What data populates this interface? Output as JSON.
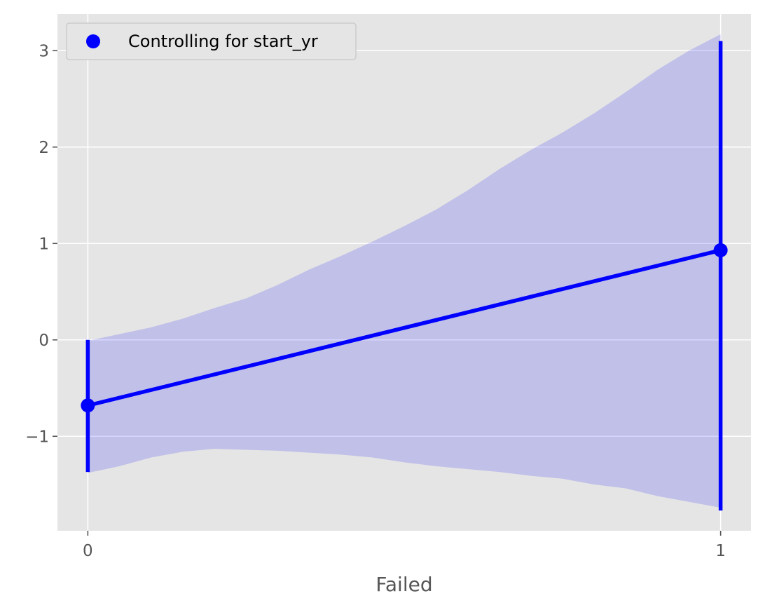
{
  "chart_data": {
    "type": "line",
    "xlabel": "Failed",
    "ylabel": "",
    "x": [
      0,
      1
    ],
    "x_ticks": [
      0,
      1
    ],
    "xlim": [
      -0.048,
      1.048
    ],
    "y_ticks": [
      -1,
      0,
      1,
      2,
      3
    ],
    "y_tick_labels": [
      "−1",
      "0",
      "1",
      "2",
      "3"
    ],
    "ylim": [
      -1.98,
      3.38
    ],
    "grid": true,
    "legend_position": "top-left",
    "series": [
      {
        "name": "Controlling for start_yr",
        "color": "#0000ff",
        "values": [
          -0.68,
          0.93
        ],
        "error_low": [
          -1.37,
          -1.77
        ],
        "error_high": [
          0.0,
          3.1
        ]
      }
    ],
    "band": {
      "color": "#0000ff",
      "x": [
        0,
        0.05,
        0.1,
        0.15,
        0.2,
        0.25,
        0.3,
        0.35,
        0.4,
        0.45,
        0.5,
        0.55,
        0.6,
        0.65,
        0.7,
        0.75,
        0.8,
        0.85,
        0.9,
        0.95,
        1
      ],
      "upper": [
        -0.01,
        0.06,
        0.13,
        0.22,
        0.33,
        0.43,
        0.57,
        0.73,
        0.87,
        1.02,
        1.18,
        1.35,
        1.55,
        1.77,
        1.97,
        2.15,
        2.35,
        2.57,
        2.8,
        3.0,
        3.17
      ],
      "lower": [
        -1.38,
        -1.31,
        -1.22,
        -1.16,
        -1.13,
        -1.14,
        -1.15,
        -1.17,
        -1.19,
        -1.22,
        -1.27,
        -1.31,
        -1.34,
        -1.37,
        -1.41,
        -1.44,
        -1.5,
        -1.54,
        -1.62,
        -1.68,
        -1.74
      ]
    }
  }
}
